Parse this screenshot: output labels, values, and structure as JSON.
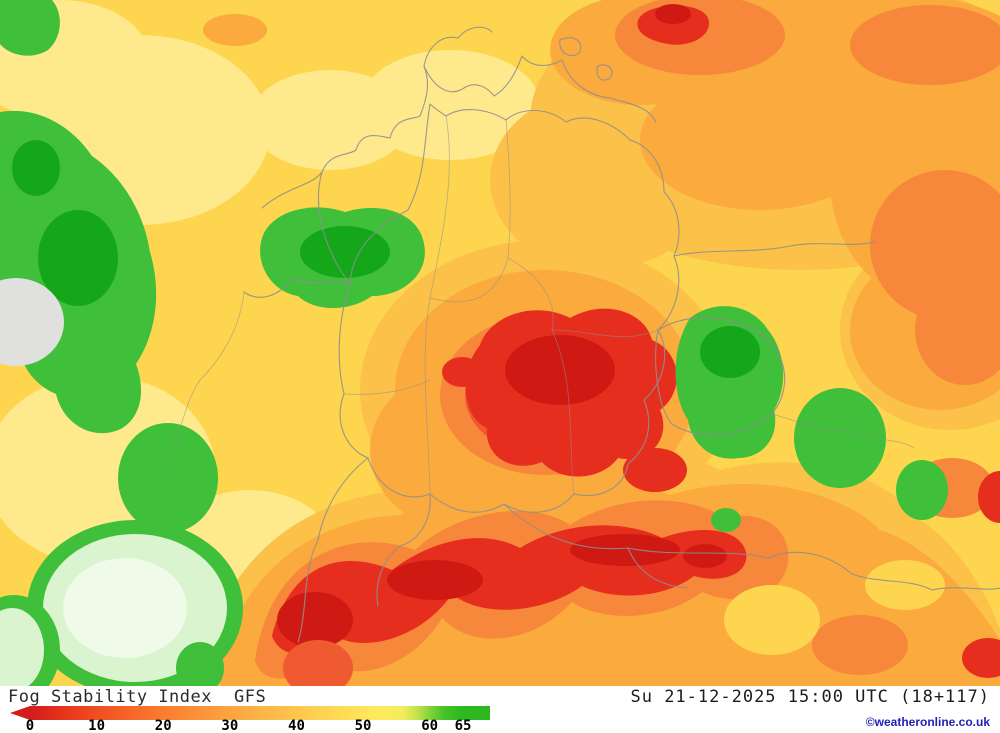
{
  "map": {
    "region": "Central Europe (Germany and neighbours)",
    "colors": {
      "yellow": "#fdd54e",
      "lyellow": "#fee98c",
      "lorange": "#fcc149",
      "orange": "#fbaa3d",
      "dorange": "#f6873b",
      "rorange": "#ef5a31",
      "red": "#e62e1f",
      "dred": "#cf1a14",
      "green": "#3fbf3a",
      "dgreen": "#15a71a",
      "pgreen": "#d9f4cf",
      "wgreen": "#effbe8",
      "gray": "#e0e0de",
      "border": "#8f8f8f"
    }
  },
  "legend": {
    "parameter": "Fog Stability Index",
    "model": "GFS",
    "datetime": "Su 21-12-2025 15:00 UTC (18+117)",
    "attribution": "©weatheronline.co.uk",
    "scale": {
      "min": 0,
      "max": 65,
      "ticks": [
        {
          "label": "0",
          "value": 0
        },
        {
          "label": "10",
          "value": 10
        },
        {
          "label": "20",
          "value": 20
        },
        {
          "label": "30",
          "value": 30
        },
        {
          "label": "40",
          "value": 40
        },
        {
          "label": "50",
          "value": 50
        },
        {
          "label": "60",
          "value": 60
        },
        {
          "label": "65",
          "value": 65
        }
      ],
      "stops": [
        {
          "value": 0,
          "color": "#d21d1b"
        },
        {
          "value": 5,
          "color": "#e7331c"
        },
        {
          "value": 10,
          "color": "#f04e22"
        },
        {
          "value": 15,
          "color": "#f66628"
        },
        {
          "value": 20,
          "color": "#f97d2f"
        },
        {
          "value": 25,
          "color": "#fb9138"
        },
        {
          "value": 30,
          "color": "#fca440"
        },
        {
          "value": 36,
          "color": "#fdb948"
        },
        {
          "value": 42,
          "color": "#fecd50"
        },
        {
          "value": 48,
          "color": "#ffdf57"
        },
        {
          "value": 53,
          "color": "#ffeb5f"
        },
        {
          "value": 56,
          "color": "#f2ec5c"
        },
        {
          "value": 58,
          "color": "#c4e44d"
        },
        {
          "value": 60,
          "color": "#84d33b"
        },
        {
          "value": 62,
          "color": "#49c229"
        },
        {
          "value": 65,
          "color": "#2db81f"
        }
      ]
    }
  },
  "chart_data": {
    "type": "heatmap",
    "title": "Fog Stability Index",
    "model": "GFS",
    "valid_time": "Su 21-12-2025 15:00 UTC (18+117)",
    "legend_range": [
      0,
      65
    ],
    "legend_ticks": [
      0,
      10,
      20,
      30,
      40,
      50,
      60,
      65
    ],
    "color_meaning_low_to_high": [
      "red",
      "orange",
      "yellow",
      "green"
    ],
    "regions": [
      {
        "area": "east-central Germany / NE Bavaria (map centre)",
        "index": "0-10 (red)"
      },
      {
        "area": "Alpine band across Switzerland and Austria (bottom centre)",
        "index": "0-10 (red)"
      },
      {
        "area": "spot at far top-right and small spots right edge / bottom right",
        "index": "0-10 (red)"
      },
      {
        "area": "south-central Germany and NE Poland region",
        "index": "15-30 (orange)"
      },
      {
        "area": "Benelux / west Germany patch",
        "index": "55-65 (green)"
      },
      {
        "area": "eastern France along left edge",
        "index": "55-65 (green)"
      },
      {
        "area": "Czech Republic patches right of Germany",
        "index": "55-65 (green)"
      },
      {
        "area": "south-west France (bottom left, pale green ringed)",
        "index": ">65"
      },
      {
        "area": "remaining areas",
        "index": "35-55 (yellow)"
      }
    ]
  }
}
